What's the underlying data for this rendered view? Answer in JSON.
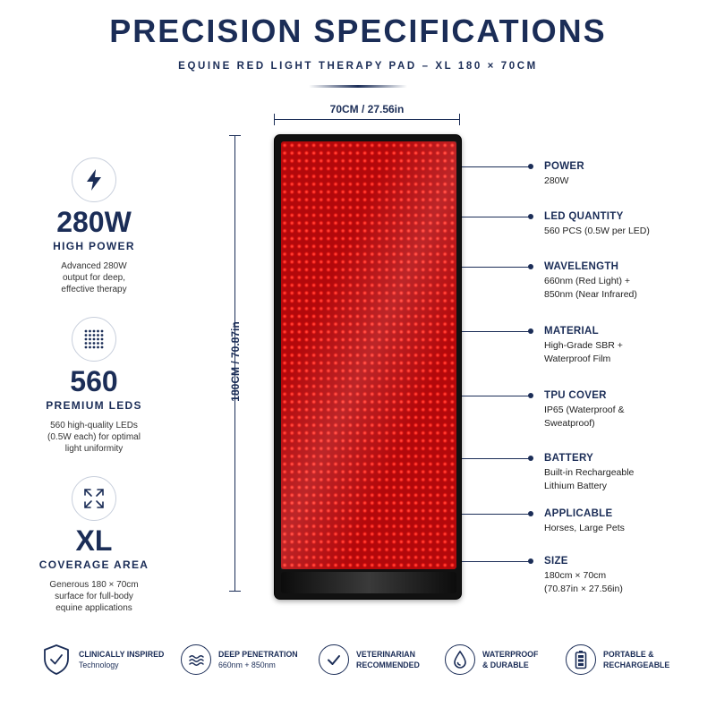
{
  "header": {
    "title": "PRECISION SPECIFICATIONS",
    "subtitle": "EQUINE RED LIGHT THERAPY PAD – XL 180 × 70CM"
  },
  "features": [
    {
      "icon": "lightning-bolt-icon",
      "value": "280W",
      "label": "HIGH POWER",
      "desc_lines": [
        "Advanced 280W",
        "output for deep,",
        "effective therapy"
      ]
    },
    {
      "icon": "led-grid-icon",
      "value": "560",
      "label": "PREMIUM LEDS",
      "desc_lines": [
        "560 high-quality LEDs",
        "(0.5W each) for optimal",
        "light uniformity"
      ]
    },
    {
      "icon": "expand-arrows-icon",
      "value": "XL",
      "label": "COVERAGE AREA",
      "desc_lines": [
        "Generous 180 × 70cm",
        "surface for full-body",
        "equine applications"
      ]
    }
  ],
  "dimensions": {
    "width_label": "70CM / 27.56in",
    "height_label": "180CM / 70.87in"
  },
  "specs": [
    {
      "title": "POWER",
      "lines": [
        "280W"
      ]
    },
    {
      "title": "LED QUANTITY",
      "lines": [
        "560 PCS (0.5W per LED)"
      ]
    },
    {
      "title": "WAVELENGTH",
      "lines": [
        "660nm (Red Light) +",
        "850nm (Near Infrared)"
      ]
    },
    {
      "title": "MATERIAL",
      "lines": [
        "High-Grade SBR +",
        "Waterproof Film"
      ]
    },
    {
      "title": "TPU COVER",
      "lines": [
        "IP65 (Waterproof &",
        "Sweatproof)"
      ]
    },
    {
      "title": "BATTERY",
      "lines": [
        "Built-in Rechargeable",
        "Lithium Battery"
      ]
    },
    {
      "title": "APPLICABLE",
      "lines": [
        "Horses, Large Pets"
      ]
    },
    {
      "title": "SIZE",
      "lines": [
        "180cm × 70cm",
        "(70.87in × 27.56in)"
      ]
    }
  ],
  "badges": [
    {
      "icon": "shield-check-icon",
      "title": "CLINICALLY INSPIRED",
      "sub": "Technology"
    },
    {
      "icon": "waves-icon",
      "title": "DEEP PENETRATION",
      "sub": "660nm + 850nm"
    },
    {
      "icon": "checkmark-icon",
      "title": "VETERINARIAN",
      "sub": "RECOMMENDED"
    },
    {
      "icon": "water-drop-icon",
      "title": "WATERPROOF",
      "sub": "& DURABLE"
    },
    {
      "icon": "battery-icon",
      "title": "PORTABLE &",
      "sub": "RECHARGEABLE"
    }
  ],
  "colors": {
    "navy": "#1b2d57",
    "led_red": "#ff2a22"
  }
}
